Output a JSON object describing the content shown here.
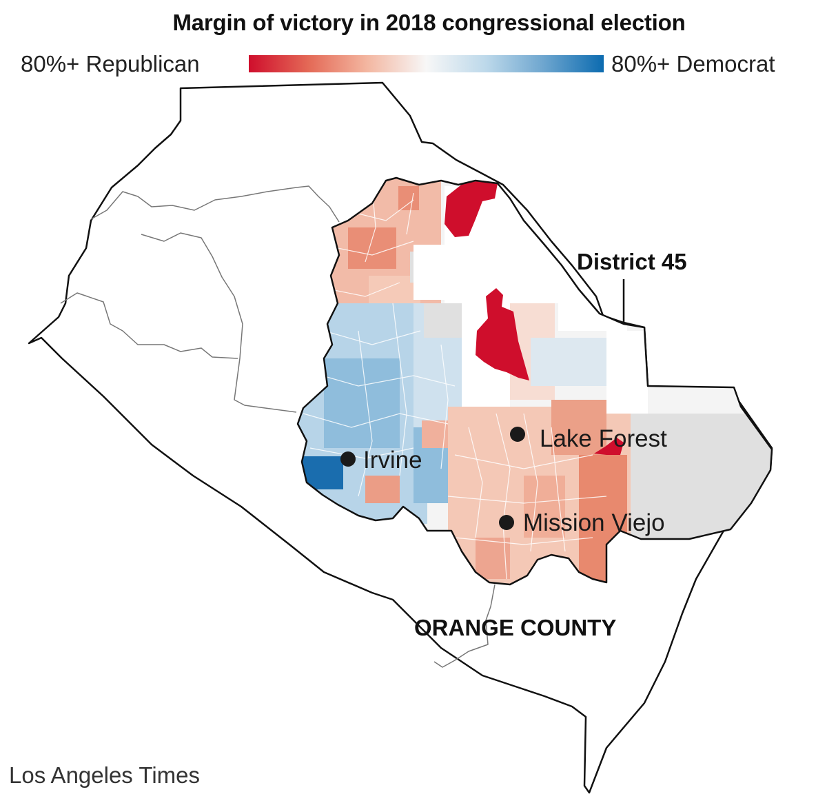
{
  "title": "Margin of victory in 2018 congressional election",
  "legend": {
    "left_label": "80%+ Republican",
    "right_label": "80%+ Democrat",
    "colors": [
      "#cf0e2c",
      "#e46a57",
      "#f3b59f",
      "#f7f7f7",
      "#bcd8ea",
      "#6ea6cf",
      "#0c6bb0"
    ]
  },
  "labels": {
    "district": "District 45",
    "county": "ORANGE COUNTY"
  },
  "cities": [
    {
      "name": "Irvine"
    },
    {
      "name": "Lake Forest"
    },
    {
      "name": "Mission Viejo"
    }
  ],
  "credit": "Los Angeles Times",
  "colors": {
    "strong_republican": "#cf0e2c",
    "lean_republican": "#ec9b82",
    "lean_democrat": "#a9cce4",
    "strong_democrat": "#0c6bb0",
    "no_data": "#e0e0e0",
    "county_outline": "#111111",
    "other_district_outline": "#777777"
  }
}
